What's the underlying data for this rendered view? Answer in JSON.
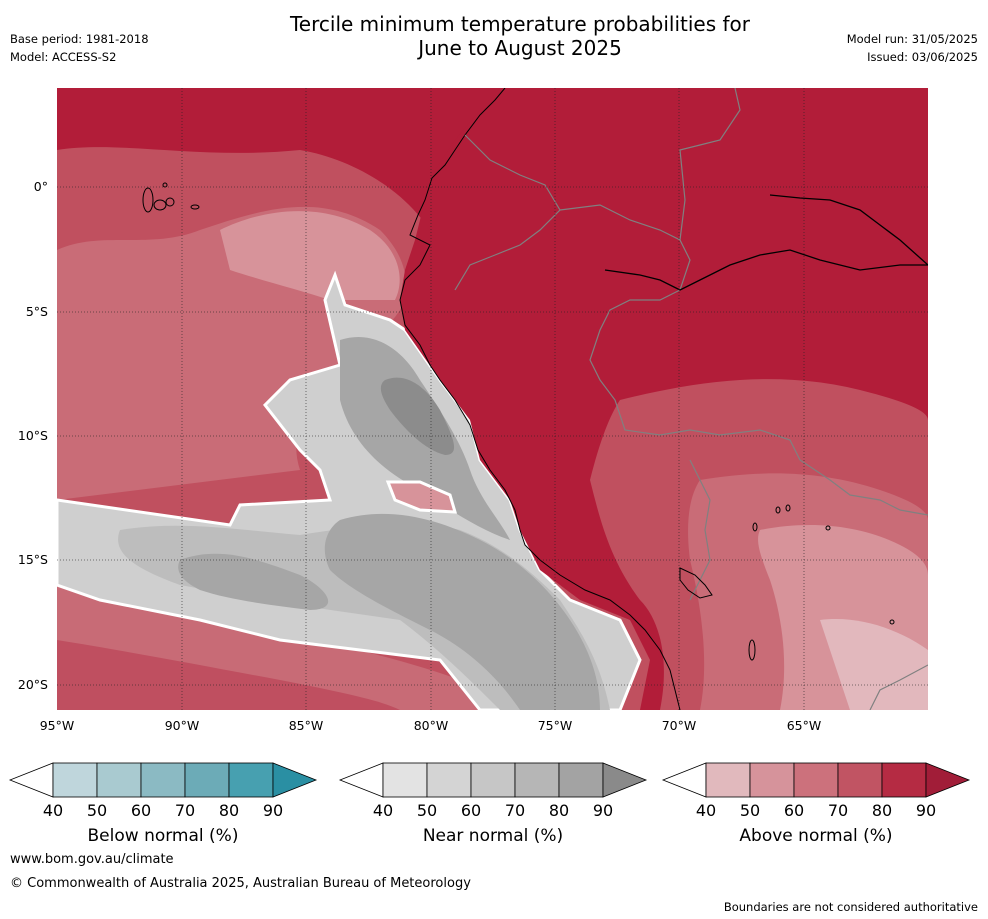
{
  "header": {
    "title_line1": "Tercile minimum temperature probabilities for",
    "title_line2": "June to August 2025",
    "base_period": "Base period: 1981-2018",
    "model": "Model: ACCESS-S2",
    "model_run": "Model run: 31/05/2025",
    "issued": "Issued: 03/06/2025"
  },
  "map": {
    "lat_labels": [
      "0°",
      "5°S",
      "10°S",
      "15°S",
      "20°S"
    ],
    "lon_labels": [
      "95°W",
      "90°W",
      "85°W",
      "80°W",
      "75°W",
      "70°W",
      "65°W"
    ],
    "region": "Western South America and eastern Pacific",
    "dominant_category_land": "Above normal",
    "dominant_category_coastal_ocean": "Near normal"
  },
  "legends": [
    {
      "name": "Below normal (%)",
      "ticks": [
        "40",
        "50",
        "60",
        "70",
        "80",
        "90"
      ],
      "colors": [
        "#ffffff",
        "#bfd6dc",
        "#a9cad0",
        "#8bbac3",
        "#6cabb7",
        "#47a0b0",
        "#2a8fa3"
      ]
    },
    {
      "name": "Near normal (%)",
      "ticks": [
        "40",
        "50",
        "60",
        "70",
        "80",
        "90"
      ],
      "colors": [
        "#ffffff",
        "#e3e3e3",
        "#d4d4d4",
        "#c6c6c6",
        "#b6b6b6",
        "#a3a3a3",
        "#8a8a8a"
      ]
    },
    {
      "name": "Above normal (%)",
      "ticks": [
        "40",
        "50",
        "60",
        "70",
        "80",
        "90"
      ],
      "colors": [
        "#ffffff",
        "#e1b9bd",
        "#d6939b",
        "#cc717c",
        "#c15463",
        "#b52b43",
        "#a11d38"
      ]
    }
  ],
  "footer": {
    "url": "www.bom.gov.au/climate",
    "copyright": "© Commonwealth of Australia 2025, Australian Bureau of Meteorology",
    "note": "Boundaries are not considered authoritative"
  }
}
